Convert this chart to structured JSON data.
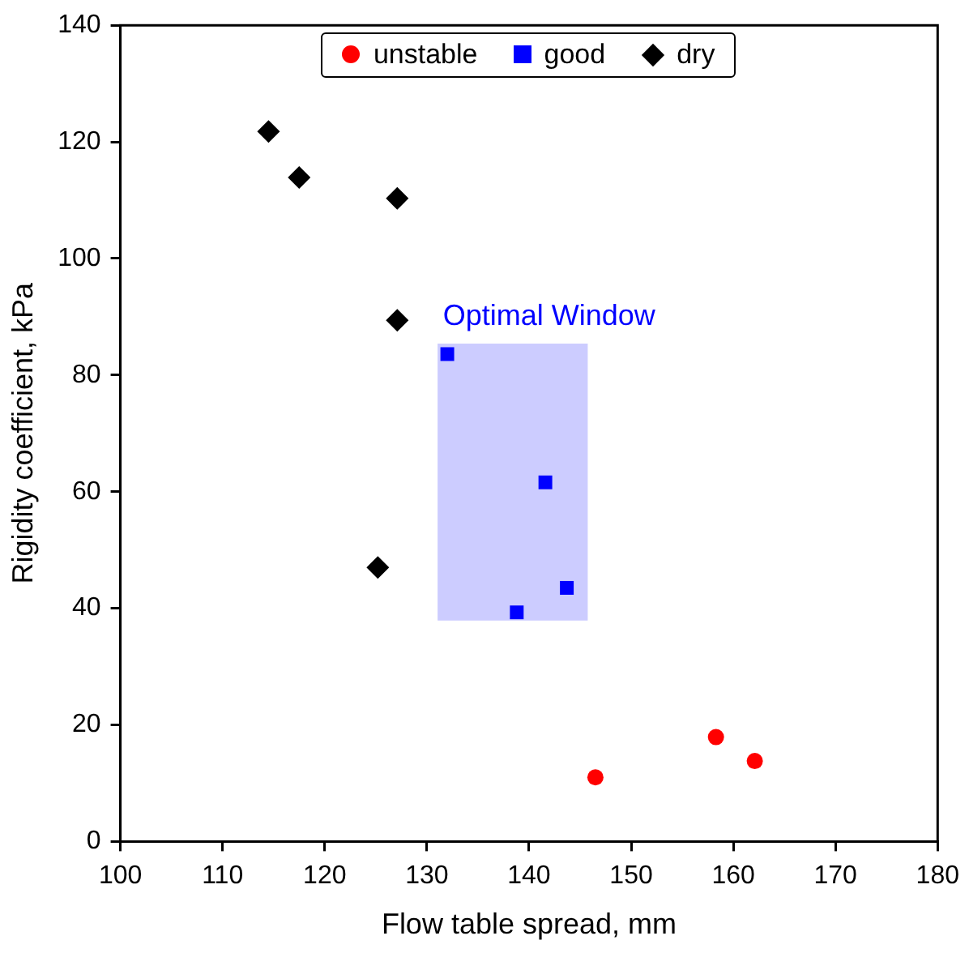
{
  "chart_data": {
    "type": "scatter",
    "xlabel": "Flow table spread, mm",
    "ylabel": "Rigidity coefficient, kPa",
    "xlim": [
      100,
      180
    ],
    "xticks": [
      100,
      110,
      120,
      130,
      140,
      150,
      160,
      170,
      180
    ],
    "ylim": [
      0,
      140
    ],
    "yticks": [
      0,
      20,
      40,
      60,
      80,
      100,
      120,
      140
    ],
    "grid": false,
    "legend": "top",
    "series": [
      {
        "type": "bar",
        "color": "#ccccff",
        "x": [
          138.4
        ],
        "base": [
          38
        ],
        "values": [
          47.3
        ]
      },
      {
        "name": "unstable",
        "color": "#ff0000",
        "marker": "circle",
        "x": [
          146.5,
          158.3,
          162.1
        ],
        "values": [
          11,
          17.9,
          13.8
        ]
      },
      {
        "name": "good",
        "color": "#0000ff",
        "marker": "square",
        "x": [
          132,
          141.6,
          138.8,
          143.7
        ],
        "values": [
          83.6,
          61.6,
          39.3,
          43.5
        ]
      },
      {
        "name": "dry",
        "color": "#000000",
        "marker": "diamond",
        "x": [
          114.5,
          117.5,
          127.1,
          127.1,
          125.2
        ],
        "values": [
          121.8,
          113.9,
          110.3,
          89.4,
          47
        ]
      }
    ],
    "annotations": [
      {
        "text": "Optimal Window",
        "x": 131.1,
        "y": 85.3
      }
    ]
  }
}
